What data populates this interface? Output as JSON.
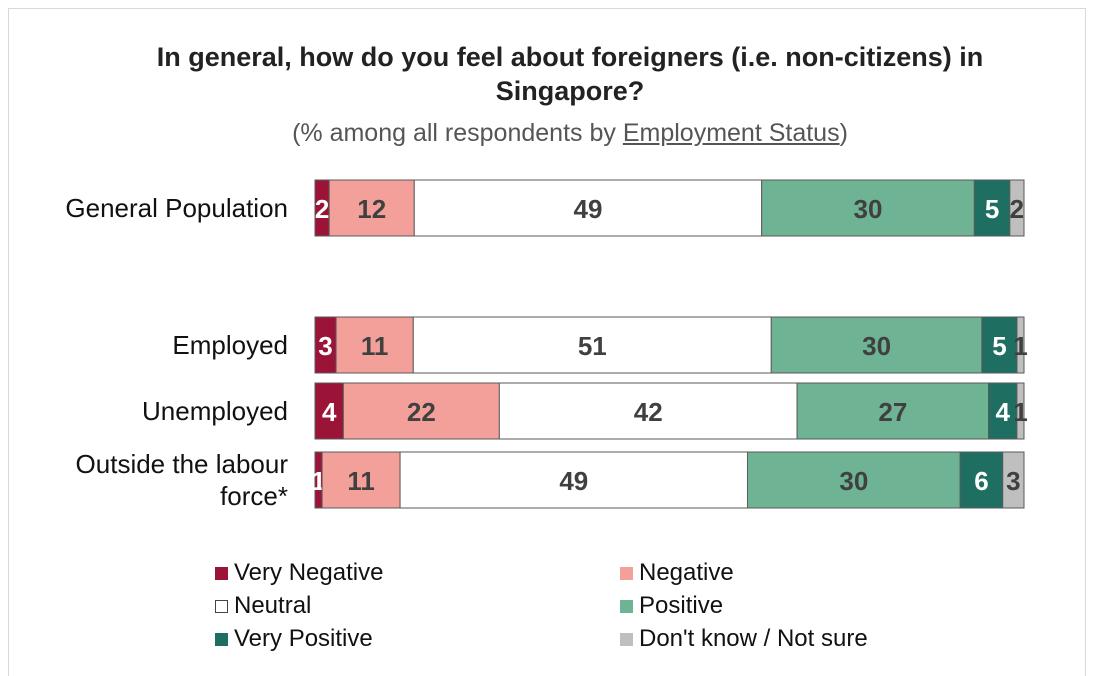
{
  "title": "In general, how do you feel about foreigners (i.e. non-citizens) in Singapore?",
  "subtitle": {
    "prefix": "(% among all respondents by ",
    "link": "Employment Status",
    "suffix": ")"
  },
  "colors": {
    "very_negative": "#9b1438",
    "negative": "#f4a09a",
    "neutral": "#ffffff",
    "positive": "#6db394",
    "very_positive": "#1f6e62",
    "dont_know": "#bfbfbf"
  },
  "chart_data": {
    "type": "bar",
    "orientation": "horizontal",
    "stacked": true,
    "percent": true,
    "categories": [
      [
        "General Population"
      ],
      [
        "Employed"
      ],
      [
        "Unemployed"
      ],
      [
        "Outside the labour",
        "force*"
      ]
    ],
    "series": [
      {
        "name": "Very Negative",
        "color_key": "very_negative",
        "values": [
          2,
          3,
          4,
          1
        ],
        "label_color": "#ffffff"
      },
      {
        "name": "Negative",
        "color_key": "negative",
        "values": [
          12,
          11,
          22,
          11
        ],
        "label_color": "#404040"
      },
      {
        "name": "Neutral",
        "color_key": "neutral",
        "values": [
          49,
          51,
          42,
          49
        ],
        "label_color": "#404040"
      },
      {
        "name": "Positive",
        "color_key": "positive",
        "values": [
          30,
          30,
          27,
          30
        ],
        "label_color": "#404040"
      },
      {
        "name": "Very Positive",
        "color_key": "very_positive",
        "values": [
          5,
          5,
          4,
          6
        ],
        "label_color": "#ffffff"
      },
      {
        "name": "Don't know / Not sure",
        "color_key": "dont_know",
        "values": [
          2,
          1,
          1,
          3
        ],
        "label_color": "#404040"
      }
    ],
    "legend_position": "bottom",
    "grid": false
  }
}
